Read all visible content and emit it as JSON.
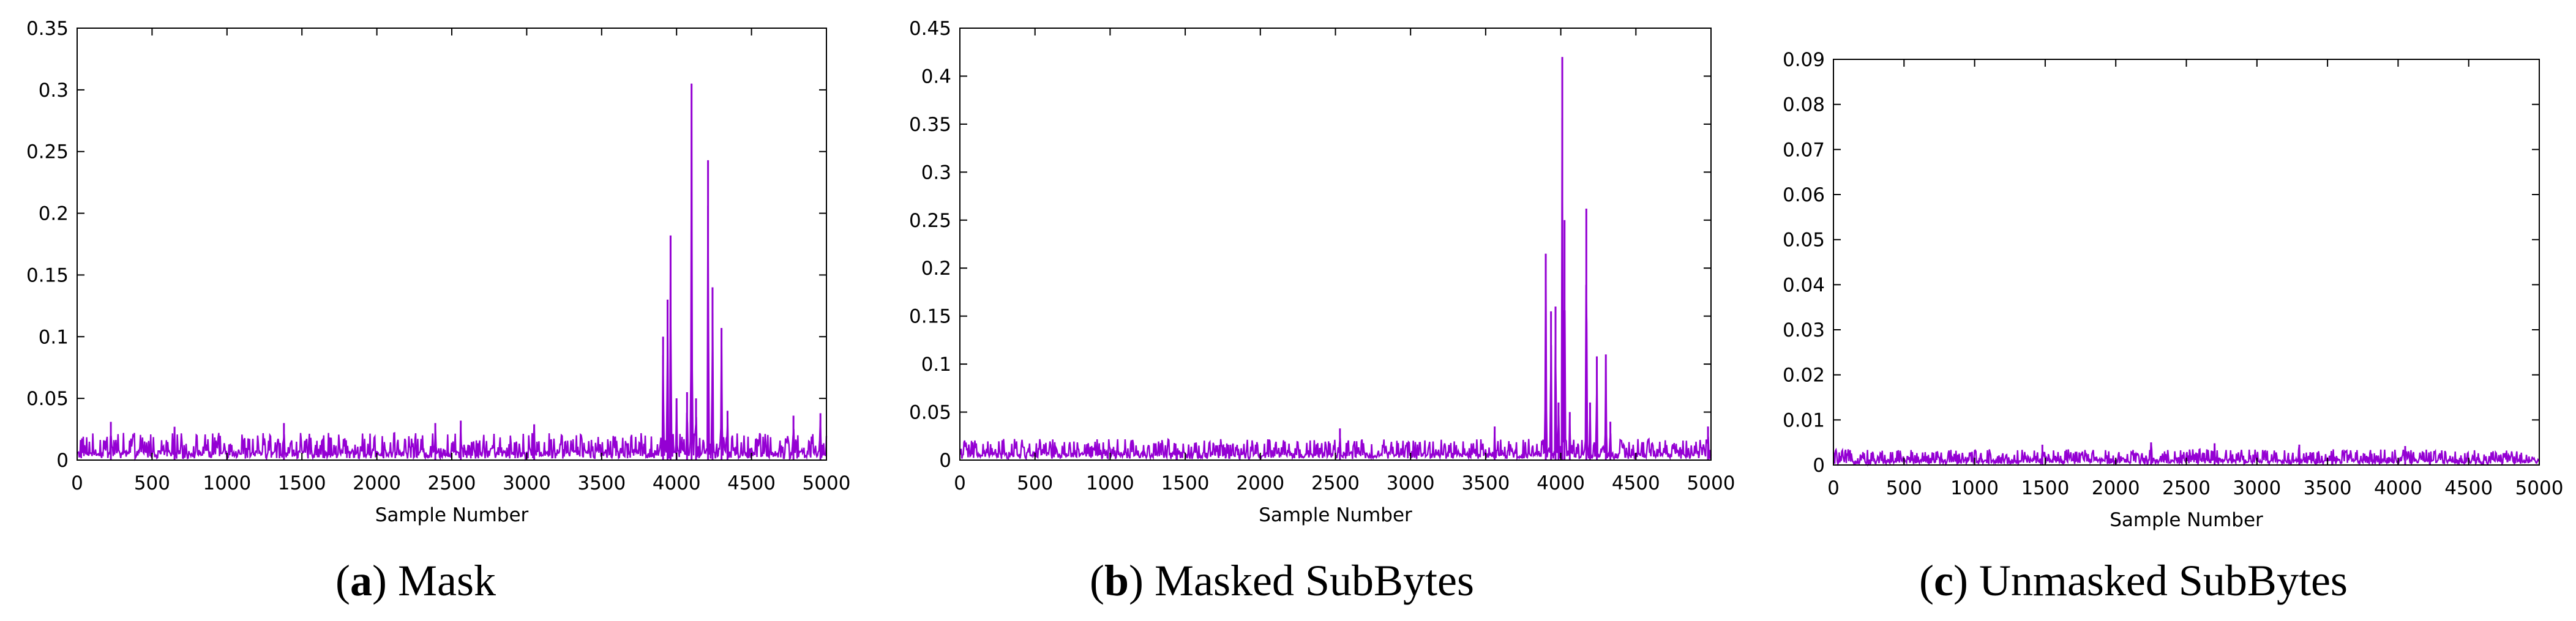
{
  "colors": {
    "series": "#9400d3",
    "axis": "#000000",
    "background": "#ffffff"
  },
  "chart_data": [
    {
      "type": "line",
      "caption_letter": "a",
      "caption_text": "Mask",
      "xlabel": "Sample Number",
      "ylabel": "",
      "xlim": [
        0,
        5000
      ],
      "ylim": [
        0,
        0.35
      ],
      "xticks": [
        0,
        500,
        1000,
        1500,
        2000,
        2500,
        3000,
        3500,
        4000,
        4500,
        5000
      ],
      "yticks": [
        "0",
        "0.05",
        "0.1",
        "0.15",
        "0.2",
        "0.25",
        "0.3",
        "0.35"
      ],
      "grid": false,
      "baseline_noise_max": 0.022,
      "series": [
        {
          "peaks": [
            {
              "x": 225,
              "y": 0.031
            },
            {
              "x": 650,
              "y": 0.027
            },
            {
              "x": 1380,
              "y": 0.03
            },
            {
              "x": 2390,
              "y": 0.03
            },
            {
              "x": 2560,
              "y": 0.032
            },
            {
              "x": 3050,
              "y": 0.029
            },
            {
              "x": 3910,
              "y": 0.1
            },
            {
              "x": 3940,
              "y": 0.13
            },
            {
              "x": 3960,
              "y": 0.182
            },
            {
              "x": 4000,
              "y": 0.05
            },
            {
              "x": 4070,
              "y": 0.055
            },
            {
              "x": 4100,
              "y": 0.305
            },
            {
              "x": 4130,
              "y": 0.05
            },
            {
              "x": 4210,
              "y": 0.243
            },
            {
              "x": 4240,
              "y": 0.14
            },
            {
              "x": 4300,
              "y": 0.107
            },
            {
              "x": 4340,
              "y": 0.04
            },
            {
              "x": 4780,
              "y": 0.036
            },
            {
              "x": 4960,
              "y": 0.038
            }
          ]
        }
      ]
    },
    {
      "type": "line",
      "caption_letter": "b",
      "caption_text": "Masked SubBytes",
      "xlabel": "Sample Number",
      "ylabel": "",
      "xlim": [
        0,
        5000
      ],
      "ylim": [
        0,
        0.45
      ],
      "xticks": [
        0,
        500,
        1000,
        1500,
        2000,
        2500,
        3000,
        3500,
        4000,
        4500,
        5000
      ],
      "yticks": [
        "0",
        "0.05",
        "0.1",
        "0.15",
        "0.2",
        "0.25",
        "0.3",
        "0.35",
        "0.4",
        "0.45"
      ],
      "grid": false,
      "baseline_noise_max": 0.022,
      "series": [
        {
          "peaks": [
            {
              "x": 2530,
              "y": 0.033
            },
            {
              "x": 3560,
              "y": 0.035
            },
            {
              "x": 3900,
              "y": 0.215
            },
            {
              "x": 3935,
              "y": 0.155
            },
            {
              "x": 3965,
              "y": 0.16
            },
            {
              "x": 3985,
              "y": 0.06
            },
            {
              "x": 4010,
              "y": 0.42
            },
            {
              "x": 4025,
              "y": 0.25
            },
            {
              "x": 4060,
              "y": 0.05
            },
            {
              "x": 4170,
              "y": 0.262
            },
            {
              "x": 4195,
              "y": 0.06
            },
            {
              "x": 4240,
              "y": 0.108
            },
            {
              "x": 4300,
              "y": 0.11
            },
            {
              "x": 4330,
              "y": 0.04
            },
            {
              "x": 4980,
              "y": 0.035
            }
          ]
        }
      ]
    },
    {
      "type": "line",
      "caption_letter": "c",
      "caption_text": "Unmasked SubBytes",
      "xlabel": "Sample Number",
      "ylabel": "",
      "xlim": [
        0,
        5000
      ],
      "ylim": [
        0,
        0.09
      ],
      "xticks": [
        0,
        500,
        1000,
        1500,
        2000,
        2500,
        3000,
        3500,
        4000,
        4500,
        5000
      ],
      "yticks": [
        "0",
        "0.01",
        "0.02",
        "0.03",
        "0.04",
        "0.05",
        "0.06",
        "0.07",
        "0.08",
        "0.09"
      ],
      "grid": false,
      "baseline_noise_max": 0.0035,
      "series": [
        {
          "peaks": [
            {
              "x": 1480,
              "y": 0.0045
            },
            {
              "x": 2250,
              "y": 0.005
            },
            {
              "x": 2700,
              "y": 0.0048
            },
            {
              "x": 3300,
              "y": 0.0045
            },
            {
              "x": 4050,
              "y": 0.0042
            }
          ]
        }
      ]
    }
  ]
}
